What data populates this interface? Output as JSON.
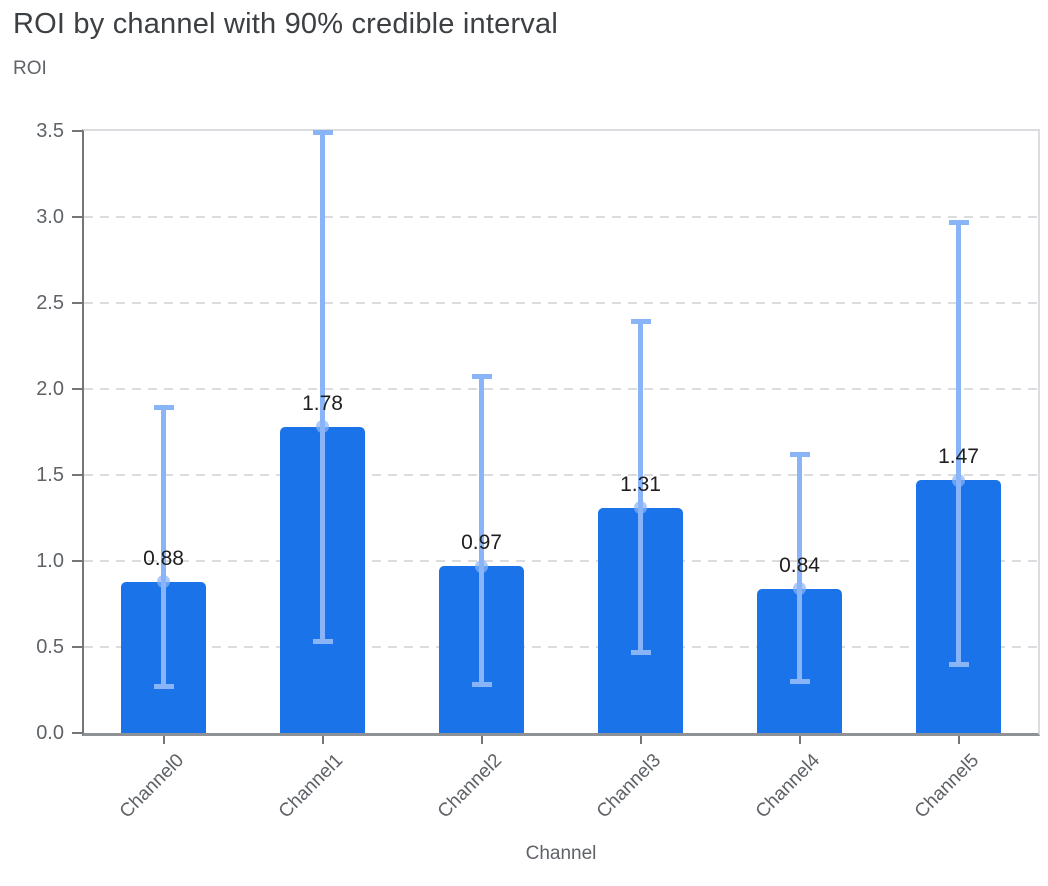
{
  "title": "ROI by channel with 90% credible interval",
  "y_axis_title": "ROI",
  "x_axis_title": "Channel",
  "colors": {
    "bar": "#1A73E8",
    "interval": "#8AB4F8",
    "interval_dot": "rgba(138,180,248,0.7)",
    "grid": "#DADCE0",
    "axis": "#757575",
    "tick_label": "#5F6368",
    "value_label": "#1F1F1F",
    "title": "#3C4043"
  },
  "chart_data": {
    "type": "bar",
    "title": "ROI by channel with 90% credible interval",
    "xlabel": "Channel",
    "ylabel": "ROI",
    "categories": [
      "Channel0",
      "Channel1",
      "Channel2",
      "Channel3",
      "Channel4",
      "Channel5"
    ],
    "values": [
      0.88,
      1.78,
      0.97,
      1.31,
      0.84,
      1.47
    ],
    "value_labels": [
      "0.88",
      "1.78",
      "0.97",
      "1.31",
      "0.84",
      "1.47"
    ],
    "error_low": [
      0.27,
      0.53,
      0.28,
      0.47,
      0.3,
      0.4
    ],
    "error_high": [
      1.89,
      3.49,
      2.07,
      2.39,
      1.62,
      2.97
    ],
    "interval": "90% credible interval",
    "ylim": [
      0,
      3.5
    ],
    "y_ticks": [
      0.0,
      0.5,
      1.0,
      1.5,
      2.0,
      2.5,
      3.0,
      3.5
    ],
    "y_tick_labels": [
      "0.0",
      "0.5",
      "1.0",
      "1.5",
      "2.0",
      "2.5",
      "3.0",
      "3.5"
    ],
    "grid": true,
    "legend": false
  }
}
